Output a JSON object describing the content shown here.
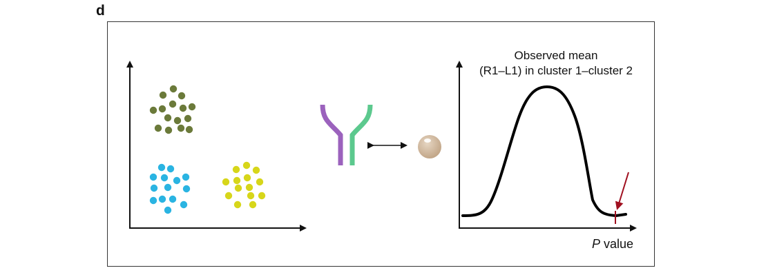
{
  "panel_label": "d",
  "dist_caption": {
    "line1": "Observed mean",
    "line2": "(R1–L1) in cluster 1–cluster 2"
  },
  "pvalue_label": {
    "symbol": "P",
    "text": "value"
  },
  "colors": {
    "cluster_olive": "#6b7a3a",
    "cluster_cyan": "#2ab4e2",
    "cluster_yellow": "#d7d61a",
    "receptor_purple": "#9b62bd",
    "receptor_green": "#5cc98e",
    "ligand_tan": "#cdb59a",
    "arrow_red": "#a01020",
    "axis": "#111111"
  },
  "icons": [
    "receptor-icon",
    "ligand-ball-icon",
    "double-arrow-icon",
    "red-arrow-icon"
  ]
}
